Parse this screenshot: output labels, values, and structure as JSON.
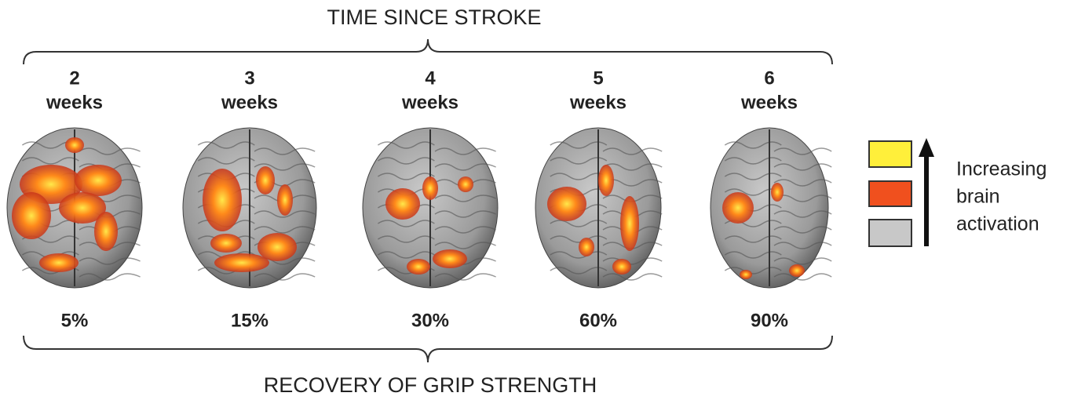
{
  "header": {
    "title": "TIME SINCE STROKE"
  },
  "panels": [
    {
      "number": "2",
      "unit": "weeks",
      "recovery": "5%"
    },
    {
      "number": "3",
      "unit": "weeks",
      "recovery": "15%"
    },
    {
      "number": "4",
      "unit": "weeks",
      "recovery": "30%"
    },
    {
      "number": "5",
      "unit": "weeks",
      "recovery": "60%"
    },
    {
      "number": "6",
      "unit": "weeks",
      "recovery": "90%"
    }
  ],
  "footer": {
    "title": "RECOVERY OF GRIP STRENGTH"
  },
  "legend": {
    "lines": [
      "Increasing",
      "brain",
      "activation"
    ]
  }
}
